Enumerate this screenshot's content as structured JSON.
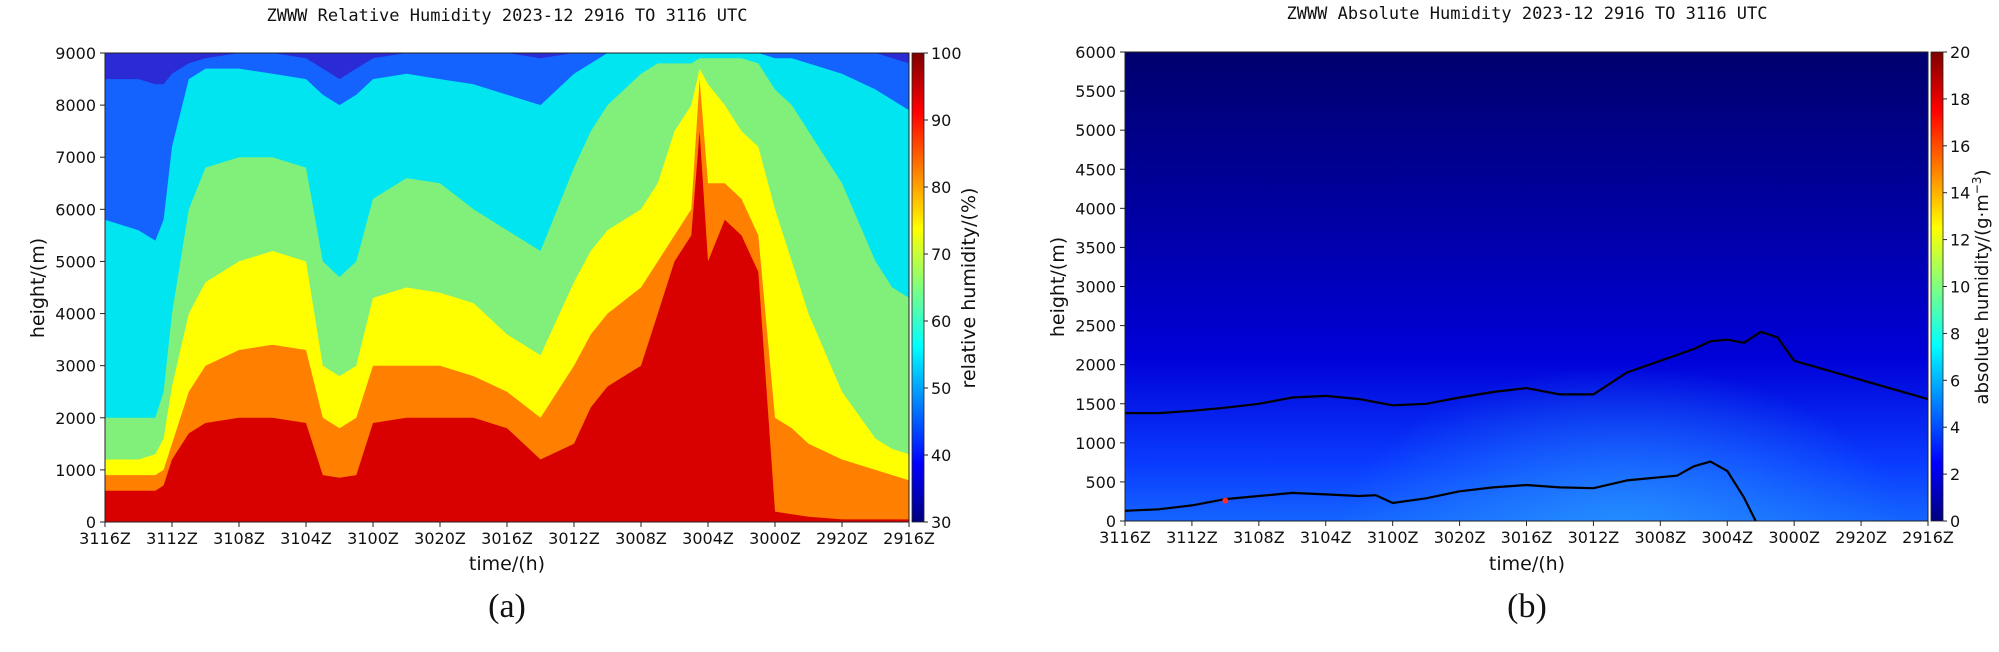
{
  "colors": {
    "jet": [
      "#00007f",
      "#0000ff",
      "#007fff",
      "#00ffff",
      "#7fff7f",
      "#ffff00",
      "#ff7f00",
      "#ff0000",
      "#7f0000"
    ],
    "rh_levels": [
      "#2b2bd6",
      "#1463ff",
      "#00e5f0",
      "#80f07a",
      "#ffff00",
      "#ff7f00",
      "#d90000"
    ],
    "ah_field": [
      "#00006e",
      "#0000b8",
      "#0014ff",
      "#1c7fff"
    ],
    "contour": "#000000",
    "marker": "#ff2a2a"
  },
  "panels": [
    {
      "id": "a",
      "caption": "(a)",
      "chart_data": {
        "type": "heatmap",
        "title": "ZWWW Relative Humidity 2023-12 2916 TO 3116 UTC",
        "xlabel": "time/(h)",
        "ylabel": "height/(m)",
        "x_tick_labels": [
          "3116Z",
          "3112Z",
          "3108Z",
          "3104Z",
          "3100Z",
          "3020Z",
          "3016Z",
          "3012Z",
          "3008Z",
          "3004Z",
          "3000Z",
          "2920Z",
          "2916Z"
        ],
        "x_hours_before_end": [
          0,
          4,
          8,
          12,
          16,
          20,
          24,
          28,
          32,
          36,
          40,
          44,
          48
        ],
        "xlim": [
          0,
          48
        ],
        "ylim": [
          0,
          9000
        ],
        "y_ticks": [
          0,
          1000,
          2000,
          3000,
          4000,
          5000,
          6000,
          7000,
          8000,
          9000
        ],
        "colorbar": {
          "label": "relative humidity/(%)",
          "range": [
            30,
            100
          ],
          "ticks": [
            30,
            40,
            50,
            60,
            70,
            80,
            90,
            100
          ],
          "levels": [
            30,
            40,
            50,
            60,
            70,
            80,
            90,
            100
          ]
        },
        "contour_tops": {
          "x_hours": [
            0,
            2,
            3,
            3.5,
            4,
            5,
            6,
            8,
            10,
            12,
            13,
            14,
            15,
            16,
            18,
            20,
            22,
            24,
            26,
            28,
            29,
            30,
            32,
            33,
            34,
            35,
            35.5,
            36,
            37,
            38,
            39,
            40,
            41,
            42,
            44,
            46,
            47,
            48
          ],
          "rh_above_90": [
            600,
            600,
            600,
            700,
            1200,
            1700,
            1900,
            2000,
            2000,
            1900,
            900,
            850,
            900,
            1900,
            2000,
            2000,
            2000,
            1800,
            1200,
            1500,
            2200,
            2600,
            3000,
            4000,
            5000,
            5500,
            7500,
            5000,
            5800,
            5500,
            4800,
            200,
            150,
            100,
            50,
            50,
            50,
            50
          ],
          "rh_above_80": [
            900,
            900,
            900,
            1000,
            1500,
            2500,
            3000,
            3300,
            3400,
            3300,
            2000,
            1800,
            2000,
            3000,
            3000,
            3000,
            2800,
            2500,
            2000,
            3000,
            3600,
            4000,
            4500,
            5000,
            5500,
            6000,
            8500,
            6500,
            6500,
            6200,
            5500,
            2000,
            1800,
            1500,
            1200,
            1000,
            900,
            800
          ],
          "rh_above_70": [
            1200,
            1200,
            1300,
            1600,
            2600,
            4000,
            4600,
            5000,
            5200,
            5000,
            3000,
            2800,
            3000,
            4300,
            4500,
            4400,
            4200,
            3600,
            3200,
            4600,
            5200,
            5600,
            6000,
            6500,
            7500,
            8000,
            8700,
            8400,
            8000,
            7500,
            7200,
            6000,
            5000,
            4000,
            2500,
            1600,
            1400,
            1300
          ],
          "rh_above_60": [
            2000,
            2000,
            2000,
            2500,
            4000,
            6000,
            6800,
            7000,
            7000,
            6800,
            5000,
            4700,
            5000,
            6200,
            6600,
            6500,
            6000,
            5600,
            5200,
            6800,
            7500,
            8000,
            8600,
            8800,
            8800,
            8800,
            8900,
            8900,
            8900,
            8900,
            8800,
            8300,
            8000,
            7500,
            6500,
            5000,
            4500,
            4300
          ],
          "rh_above_50": [
            5800,
            5600,
            5400,
            5800,
            7200,
            8500,
            8700,
            8700,
            8600,
            8500,
            8200,
            8000,
            8200,
            8500,
            8600,
            8500,
            8400,
            8200,
            8000,
            8600,
            8800,
            9000,
            9000,
            9000,
            9000,
            9000,
            9000,
            9000,
            9000,
            9000,
            9000,
            8900,
            8900,
            8800,
            8600,
            8300,
            8100,
            7900
          ],
          "rh_above_40": [
            8500,
            8500,
            8400,
            8400,
            8600,
            8800,
            8900,
            9000,
            9000,
            8900,
            8700,
            8500,
            8700,
            8900,
            9000,
            9000,
            9000,
            9000,
            8900,
            9000,
            9000,
            9000,
            9000,
            9000,
            9000,
            9000,
            9000,
            9000,
            9000,
            9000,
            9000,
            9000,
            9000,
            9000,
            9000,
            9000,
            8900,
            8800
          ]
        }
      }
    },
    {
      "id": "b",
      "caption": "(b)",
      "chart_data": {
        "type": "heatmap",
        "title": "ZWWW Absolute Humidity 2023-12 2916 TO 3116 UTC",
        "xlabel": "time/(h)",
        "ylabel": "height/(m)",
        "x_tick_labels": [
          "3116Z",
          "3112Z",
          "3108Z",
          "3104Z",
          "3100Z",
          "3020Z",
          "3016Z",
          "3012Z",
          "3008Z",
          "3004Z",
          "3000Z",
          "2920Z",
          "2916Z"
        ],
        "x_hours_before_end": [
          0,
          4,
          8,
          12,
          16,
          20,
          24,
          28,
          32,
          36,
          40,
          44,
          48
        ],
        "xlim": [
          0,
          48
        ],
        "ylim": [
          0,
          6000
        ],
        "y_ticks": [
          0,
          500,
          1000,
          1500,
          2000,
          2500,
          3000,
          3500,
          4000,
          4500,
          5000,
          5500,
          6000
        ],
        "colorbar": {
          "label": "absolute humidity/(g·m",
          "label_exponent": "−3",
          "label_suffix": ")",
          "range": [
            0,
            20
          ],
          "ticks": [
            0,
            2,
            4,
            6,
            8,
            10,
            12,
            14,
            16,
            18,
            20
          ]
        },
        "contours": [
          {
            "x_hours": [
              0,
              2,
              4,
              6,
              8,
              10,
              12,
              14,
              16,
              18,
              20,
              22,
              24,
              26,
              28,
              30,
              32,
              34,
              35,
              36,
              37,
              38,
              39,
              40,
              48
            ],
            "y_m": [
              1380,
              1380,
              1410,
              1450,
              1500,
              1580,
              1600,
              1560,
              1480,
              1500,
              1580,
              1650,
              1700,
              1620,
              1620,
              1900,
              2050,
              2200,
              2300,
              2320,
              2280,
              2420,
              2350,
              2050,
              1560
            ]
          },
          {
            "x_hours": [
              0,
              2,
              4,
              6,
              8,
              10,
              12,
              14,
              15,
              16,
              18,
              20,
              22,
              24,
              26,
              28,
              30,
              32,
              33,
              34,
              35,
              36,
              37,
              37.7
            ],
            "y_m": [
              130,
              150,
              200,
              280,
              320,
              360,
              340,
              320,
              330,
              230,
              290,
              380,
              430,
              460,
              430,
              420,
              520,
              560,
              580,
              700,
              760,
              640,
              300,
              0
            ]
          }
        ],
        "markers": [
          {
            "x_hours": 6,
            "y_m": 260
          }
        ]
      }
    }
  ]
}
